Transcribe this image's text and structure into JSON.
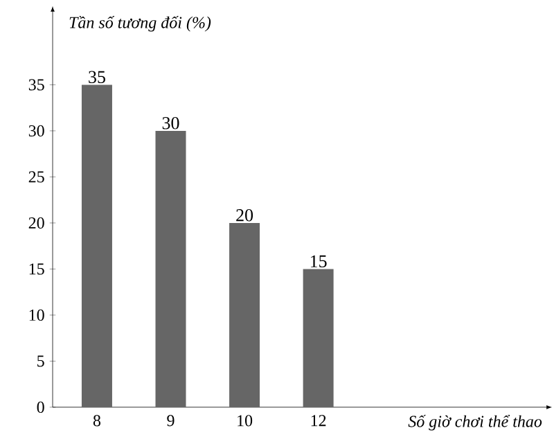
{
  "chart_data": {
    "type": "bar",
    "xlabel": "Số giờ chơi thể thao",
    "ylabel": "Tần số tương đối (%)",
    "categories": [
      "8",
      "9",
      "10",
      "12"
    ],
    "values": [
      35,
      30,
      20,
      15
    ],
    "color": "#666666",
    "ylim": [
      0,
      43
    ],
    "yticks": [
      0,
      5,
      10,
      15,
      20,
      25,
      30,
      35
    ],
    "data_labels": true,
    "grid": false
  }
}
